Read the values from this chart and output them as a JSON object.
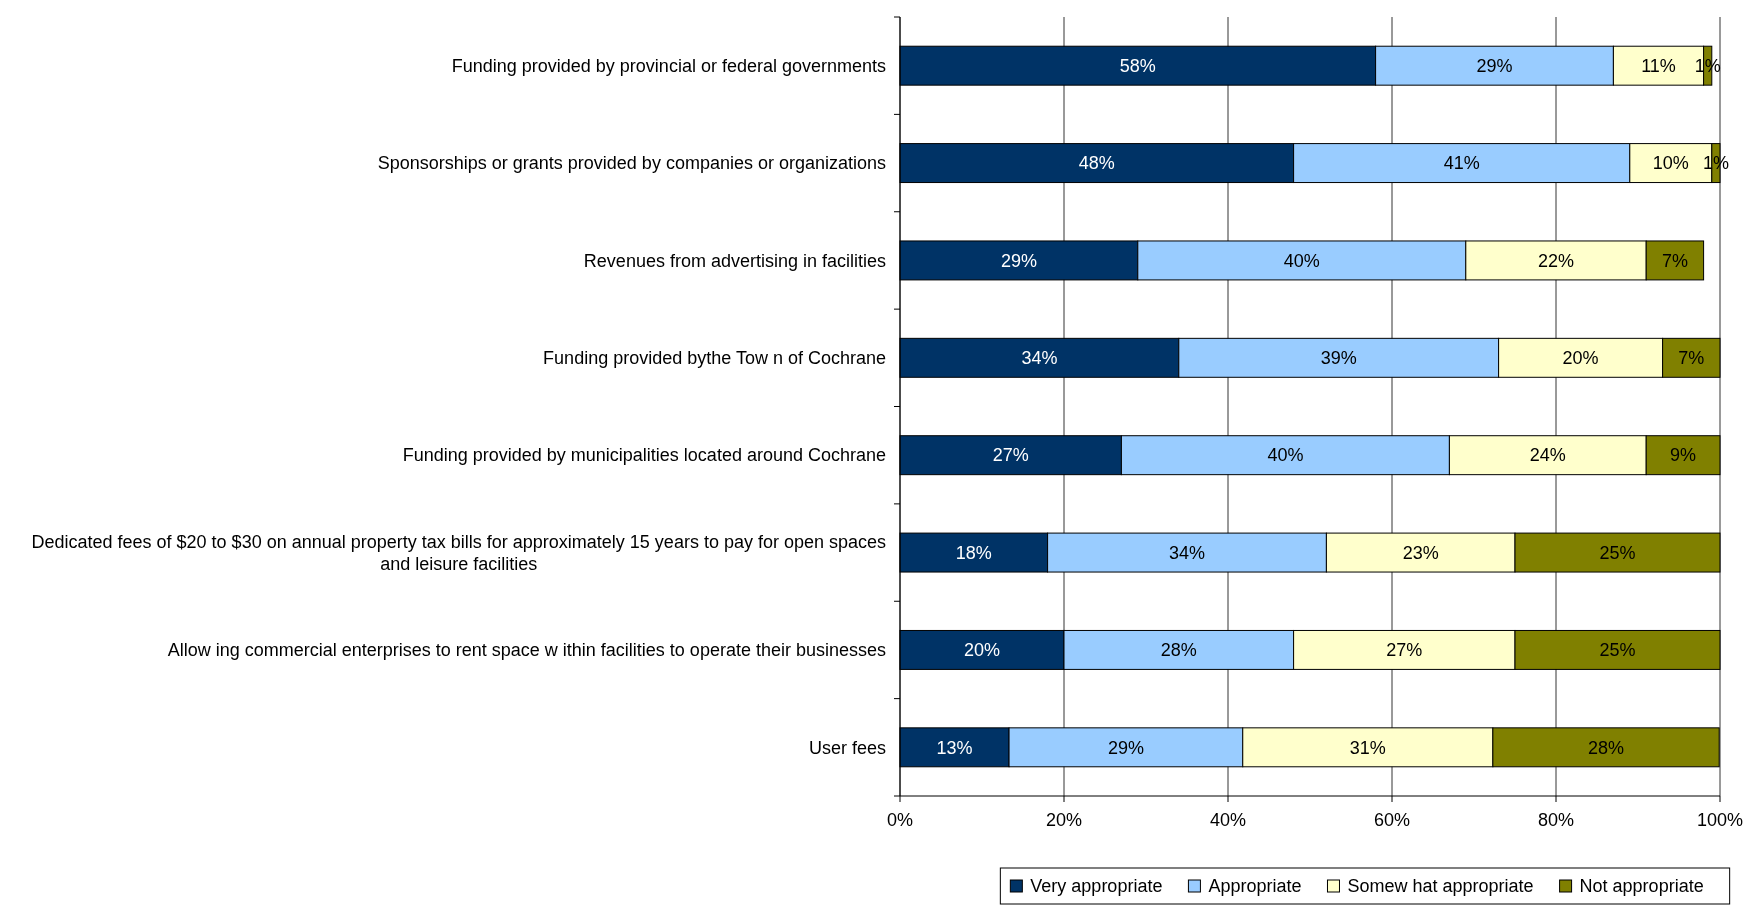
{
  "chart_data": {
    "type": "bar",
    "orientation": "horizontal",
    "stacked": true,
    "categories": [
      "Funding provided by provincial or federal governments",
      "Sponsorships or grants provided by companies or organizations",
      "Revenues from advertising in facilities",
      "Funding provided bythe Tow n of Cochrane",
      "Funding provided by municipalities located around Cochrane",
      "Dedicated fees of $20 to $30 on annual property tax bills for approximately 15 years to pay for open spaces and leisure facilities",
      "Allow ing commercial enterprises to rent space w ithin facilities to operate their businesses",
      "User fees"
    ],
    "series": [
      {
        "name": "Very appropriate",
        "color": "#003366",
        "values": [
          58,
          48,
          29,
          34,
          27,
          18,
          20,
          13.3
        ],
        "value_labels": [
          "58%",
          "48%",
          "29%",
          "34%",
          "27%",
          "18%",
          "20%",
          "13%"
        ]
      },
      {
        "name": "Appropriate",
        "color": "#99ccff",
        "values": [
          29,
          41,
          40,
          39,
          40,
          34,
          28,
          28.5
        ],
        "value_labels": [
          "29%",
          "41%",
          "40%",
          "39%",
          "40%",
          "34%",
          "28%",
          "29%"
        ]
      },
      {
        "name": "Somew hat appropriate",
        "color": "#ffffcc",
        "values": [
          11,
          10,
          22,
          20,
          24,
          23,
          27,
          30.5
        ],
        "value_labels": [
          "11%",
          "10%",
          "22%",
          "20%",
          "24%",
          "23%",
          "27%",
          "31%"
        ]
      },
      {
        "name": "Not appropriate",
        "color": "#808000",
        "values": [
          1,
          1,
          7,
          7,
          9,
          25,
          25,
          27.6
        ],
        "value_labels": [
          "1%",
          "1%",
          "7%",
          "7%",
          "9%",
          "25%",
          "25%",
          "28%"
        ]
      }
    ],
    "xlim": [
      0,
      100
    ],
    "xticks": [
      {
        "value": 0,
        "label": "0%"
      },
      {
        "value": 20,
        "label": "20%"
      },
      {
        "value": 40,
        "label": "40%"
      },
      {
        "value": 60,
        "label": "60%"
      },
      {
        "value": 80,
        "label": "80%"
      },
      {
        "value": 100,
        "label": "100%"
      }
    ],
    "grid": "x",
    "legend": "bottom"
  }
}
